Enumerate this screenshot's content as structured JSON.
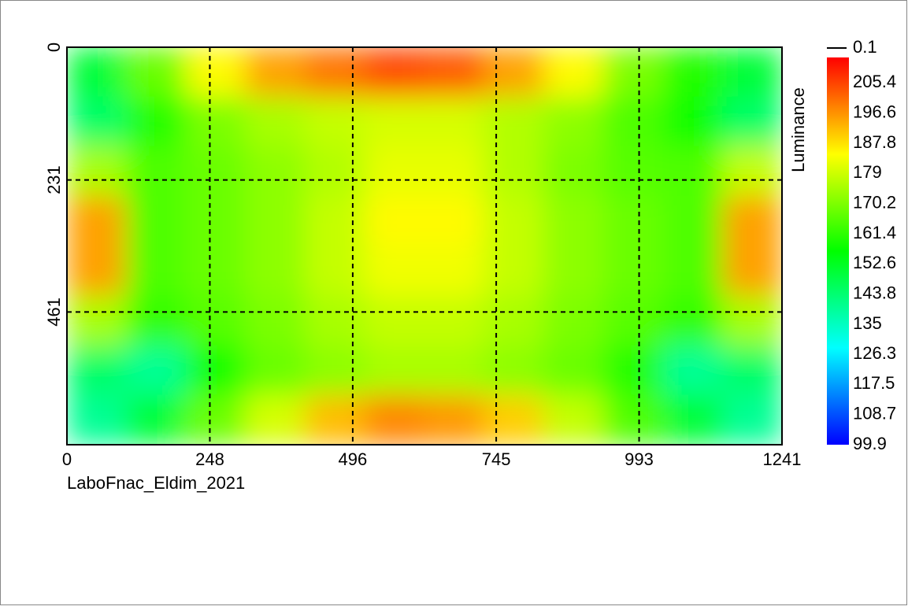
{
  "chart_data": {
    "type": "heatmap",
    "caption": "LaboFnac_Eldim_2021",
    "xlim": [
      0,
      1241
    ],
    "xticks": [
      0,
      248,
      496,
      745,
      993,
      1241
    ],
    "ylim": [
      0,
      692
    ],
    "yticks": [
      0,
      231,
      461
    ],
    "y_inverted": true,
    "grid": true,
    "z": [
      [
        150,
        168,
        185,
        195,
        200,
        205,
        203,
        195,
        185,
        170,
        160,
        150
      ],
      [
        145,
        160,
        170,
        175,
        178,
        180,
        180,
        176,
        172,
        165,
        158,
        145
      ],
      [
        175,
        165,
        168,
        172,
        176,
        182,
        182,
        176,
        170,
        166,
        165,
        178
      ],
      [
        195,
        165,
        168,
        172,
        178,
        185,
        185,
        178,
        172,
        168,
        165,
        195
      ],
      [
        195,
        165,
        168,
        172,
        178,
        183,
        183,
        178,
        172,
        168,
        165,
        195
      ],
      [
        175,
        162,
        166,
        170,
        175,
        178,
        178,
        175,
        170,
        166,
        162,
        175
      ],
      [
        145,
        140,
        158,
        168,
        172,
        175,
        175,
        172,
        168,
        160,
        140,
        145
      ],
      [
        140,
        150,
        168,
        180,
        192,
        198,
        196,
        190,
        178,
        165,
        150,
        140
      ]
    ],
    "colorbar": {
      "label": "Luminance",
      "lim": [
        99.9,
        212.8
      ],
      "ticks": [
        99.9,
        108.7,
        117.5,
        126.3,
        135.0,
        143.8,
        152.6,
        161.4,
        170.2,
        179.0,
        187.8,
        196.6,
        205.4
      ],
      "marker": 0.1,
      "colormap": [
        "#0000ff",
        "#00ffff",
        "#00ff00",
        "#ffff00",
        "#ff0000"
      ]
    }
  }
}
